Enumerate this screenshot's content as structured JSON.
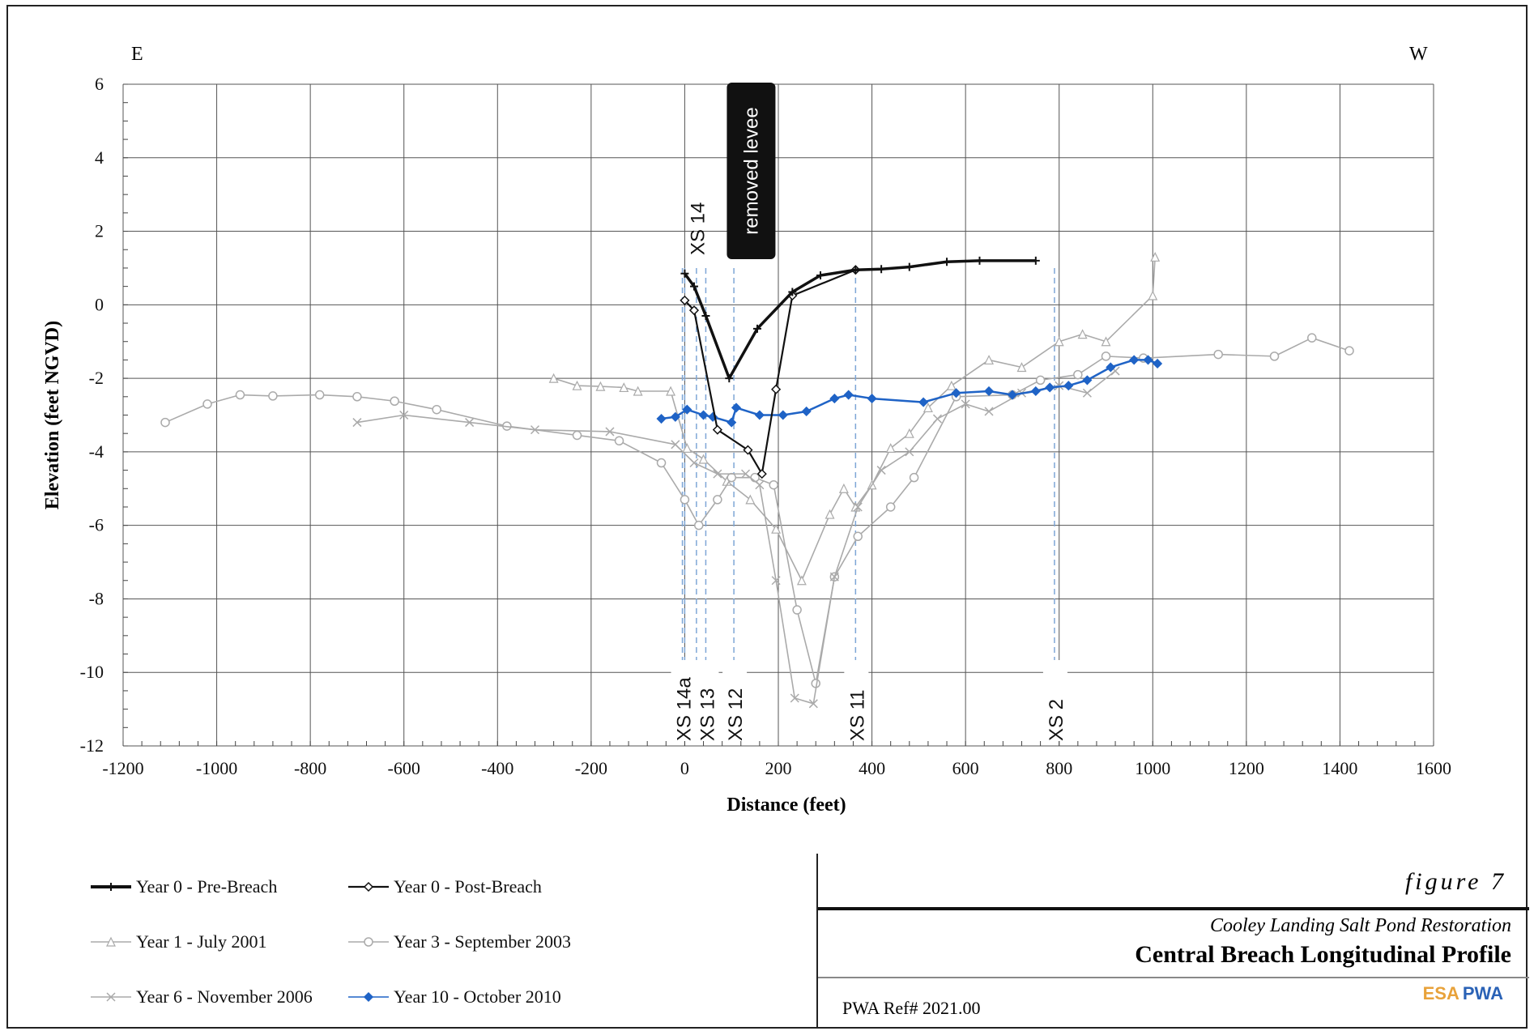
{
  "chart_data": {
    "type": "line",
    "xlabel": "Distance (feet)",
    "ylabel": "Elevation (feet NGVD)",
    "xlim": [
      -1200,
      1600
    ],
    "ylim": [
      -12,
      6
    ],
    "x_ticks": [
      "-1200",
      "-1000",
      "-800",
      "-600",
      "-400",
      "-200",
      "0",
      "200",
      "400",
      "600",
      "800",
      "1000",
      "1200",
      "1400",
      "1600"
    ],
    "y_ticks": [
      "-12",
      "-10",
      "-8",
      "-6",
      "-4",
      "-2",
      "0",
      "2",
      "4",
      "6"
    ],
    "grid": true,
    "corner_left": "E",
    "corner_right": "W",
    "annotations": {
      "removed_levee": "removed levee",
      "sections": [
        {
          "label": "XS 14",
          "x": 0,
          "pos": "top"
        },
        {
          "label": "XS 14a",
          "x": -5,
          "pos": "bottom"
        },
        {
          "label": "XS 13",
          "x": 45,
          "pos": "bottom"
        },
        {
          "label": "XS 12",
          "x": 105,
          "pos": "bottom"
        },
        {
          "label": "XS 11",
          "x": 365,
          "pos": "bottom"
        },
        {
          "label": "XS 2",
          "x": 790,
          "pos": "bottom"
        }
      ],
      "dashed_lines": [
        -5,
        0,
        25,
        45,
        105,
        365,
        790
      ]
    },
    "series": [
      {
        "name": "Year 0 - Pre-Breach",
        "color": "#111111",
        "marker": "plus",
        "points": [
          [
            0,
            0.85
          ],
          [
            20,
            0.5
          ],
          [
            45,
            -0.3
          ],
          [
            95,
            -2
          ],
          [
            155,
            -0.65
          ],
          [
            230,
            0.35
          ],
          [
            290,
            0.8
          ],
          [
            365,
            0.95
          ],
          [
            420,
            0.97
          ],
          [
            480,
            1.03
          ],
          [
            560,
            1.17
          ],
          [
            630,
            1.2
          ],
          [
            750,
            1.2
          ]
        ]
      },
      {
        "name": "Year 0 - Post-Breach",
        "color": "#111111",
        "marker": "diamond",
        "points": [
          [
            0,
            0.12
          ],
          [
            20,
            -0.15
          ],
          [
            70,
            -3.4
          ],
          [
            135,
            -3.95
          ],
          [
            165,
            -4.6
          ],
          [
            195,
            -2.3
          ],
          [
            230,
            0.25
          ],
          [
            365,
            0.95
          ]
        ]
      },
      {
        "name": "Year 1 - July 2001",
        "color": "#aaaaaa",
        "marker": "triangle",
        "points": [
          [
            -280,
            -2
          ],
          [
            -230,
            -2.2
          ],
          [
            -180,
            -2.22
          ],
          [
            -130,
            -2.25
          ],
          [
            -100,
            -2.35
          ],
          [
            -30,
            -2.35
          ],
          [
            5,
            -3.9
          ],
          [
            40,
            -4.2
          ],
          [
            90,
            -4.8
          ],
          [
            140,
            -5.3
          ],
          [
            195,
            -6.1
          ],
          [
            250,
            -7.5
          ],
          [
            310,
            -5.7
          ],
          [
            340,
            -5
          ],
          [
            365,
            -5.5
          ],
          [
            400,
            -4.9
          ],
          [
            440,
            -3.9
          ],
          [
            480,
            -3.5
          ],
          [
            520,
            -2.8
          ],
          [
            570,
            -2.2
          ],
          [
            650,
            -1.5
          ],
          [
            720,
            -1.7
          ],
          [
            800,
            -1
          ],
          [
            850,
            -0.8
          ],
          [
            900,
            -1
          ],
          [
            1000,
            0.25
          ],
          [
            1005,
            1.3
          ]
        ]
      },
      {
        "name": "Year 3 - September 2003",
        "color": "#aaaaaa",
        "marker": "circle",
        "points": [
          [
            -1110,
            -3.2
          ],
          [
            -1020,
            -2.7
          ],
          [
            -950,
            -2.45
          ],
          [
            -880,
            -2.48
          ],
          [
            -780,
            -2.45
          ],
          [
            -700,
            -2.5
          ],
          [
            -620,
            -2.62
          ],
          [
            -530,
            -2.85
          ],
          [
            -380,
            -3.3
          ],
          [
            -230,
            -3.55
          ],
          [
            -140,
            -3.7
          ],
          [
            -50,
            -4.3
          ],
          [
            0,
            -5.3
          ],
          [
            30,
            -6
          ],
          [
            70,
            -5.3
          ],
          [
            100,
            -4.7
          ],
          [
            150,
            -4.7
          ],
          [
            190,
            -4.9
          ],
          [
            240,
            -8.3
          ],
          [
            280,
            -10.3
          ],
          [
            320,
            -7.4
          ],
          [
            370,
            -6.3
          ],
          [
            440,
            -5.5
          ],
          [
            490,
            -4.7
          ],
          [
            580,
            -2.5
          ],
          [
            700,
            -2.45
          ],
          [
            760,
            -2.05
          ],
          [
            840,
            -1.9
          ],
          [
            900,
            -1.4
          ],
          [
            980,
            -1.45
          ],
          [
            1140,
            -1.35
          ],
          [
            1260,
            -1.4
          ],
          [
            1340,
            -0.9
          ],
          [
            1420,
            -1.25
          ]
        ]
      },
      {
        "name": "Year 6 - November 2006",
        "color": "#aaaaaa",
        "marker": "cross",
        "points": [
          [
            -700,
            -3.2
          ],
          [
            -600,
            -3
          ],
          [
            -460,
            -3.2
          ],
          [
            -320,
            -3.4
          ],
          [
            -160,
            -3.45
          ],
          [
            -20,
            -3.8
          ],
          [
            20,
            -4.3
          ],
          [
            70,
            -4.6
          ],
          [
            130,
            -4.6
          ],
          [
            160,
            -4.9
          ],
          [
            195,
            -7.5
          ],
          [
            235,
            -10.7
          ],
          [
            275,
            -10.85
          ],
          [
            320,
            -7.4
          ],
          [
            370,
            -5.5
          ],
          [
            420,
            -4.5
          ],
          [
            480,
            -4
          ],
          [
            540,
            -3.1
          ],
          [
            600,
            -2.7
          ],
          [
            650,
            -2.9
          ],
          [
            720,
            -2.4
          ],
          [
            800,
            -2.2
          ],
          [
            860,
            -2.4
          ],
          [
            920,
            -1.8
          ]
        ]
      },
      {
        "name": "Year 10 - October 2010",
        "color": "#1f63c6",
        "marker": "diamond",
        "points": [
          [
            -50,
            -3.1
          ],
          [
            -20,
            -3.05
          ],
          [
            5,
            -2.85
          ],
          [
            40,
            -3
          ],
          [
            60,
            -3.05
          ],
          [
            100,
            -3.2
          ],
          [
            110,
            -2.8
          ],
          [
            160,
            -3
          ],
          [
            210,
            -3
          ],
          [
            260,
            -2.9
          ],
          [
            320,
            -2.55
          ],
          [
            350,
            -2.45
          ],
          [
            400,
            -2.55
          ],
          [
            510,
            -2.65
          ],
          [
            580,
            -2.4
          ],
          [
            650,
            -2.35
          ],
          [
            700,
            -2.45
          ],
          [
            750,
            -2.35
          ],
          [
            780,
            -2.25
          ],
          [
            820,
            -2.2
          ],
          [
            860,
            -2.05
          ],
          [
            910,
            -1.7
          ],
          [
            960,
            -1.5
          ],
          [
            990,
            -1.5
          ],
          [
            1010,
            -1.6
          ]
        ]
      }
    ]
  },
  "title_block": {
    "figure": "figure 7",
    "project": "Cooley Landing Salt Pond Restoration",
    "title": "Central Breach Longitudinal Profile",
    "ref": "PWA Ref# 2021.00",
    "logo_esa": "ESA",
    "logo_pwa": "PWA"
  }
}
